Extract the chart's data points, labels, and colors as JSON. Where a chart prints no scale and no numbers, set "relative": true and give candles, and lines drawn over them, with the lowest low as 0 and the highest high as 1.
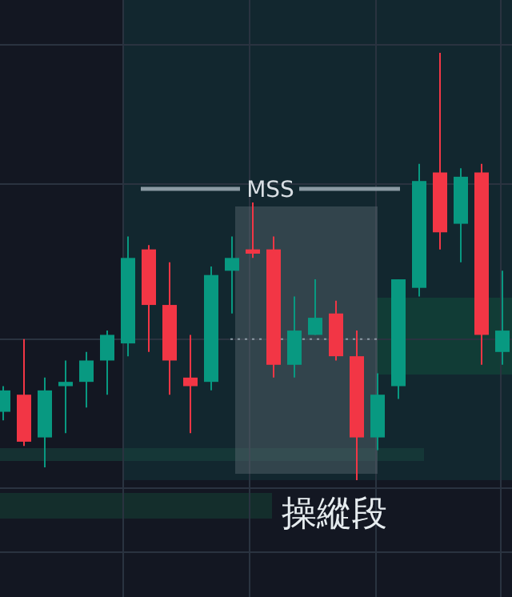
{
  "chart_data": {
    "type": "candlestick",
    "relative": true,
    "categories": [
      null,
      null,
      null,
      null,
      null,
      null,
      null,
      null,
      null,
      null,
      null,
      null,
      null,
      null,
      null,
      null,
      null,
      null,
      null,
      null,
      null,
      null,
      null,
      null,
      null
    ],
    "ohlc": [
      [
        0.16,
        0.22,
        0.14,
        0.21
      ],
      [
        0.2,
        0.33,
        0.08,
        0.09
      ],
      [
        0.1,
        0.24,
        0.03,
        0.21
      ],
      [
        0.22,
        0.28,
        0.11,
        0.23
      ],
      [
        0.23,
        0.3,
        0.17,
        0.28
      ],
      [
        0.28,
        0.35,
        0.2,
        0.34
      ],
      [
        0.32,
        0.57,
        0.29,
        0.52
      ],
      [
        0.54,
        0.55,
        0.3,
        0.41
      ],
      [
        0.41,
        0.51,
        0.2,
        0.28
      ],
      [
        0.24,
        0.34,
        0.11,
        0.22
      ],
      [
        0.23,
        0.5,
        0.21,
        0.48
      ],
      [
        0.49,
        0.57,
        0.39,
        0.52
      ],
      [
        0.54,
        0.65,
        0.52,
        0.53
      ],
      [
        0.54,
        0.57,
        0.24,
        0.27
      ],
      [
        0.27,
        0.43,
        0.24,
        0.35
      ],
      [
        0.34,
        0.47,
        0.34,
        0.38
      ],
      [
        0.39,
        0.42,
        0.28,
        0.29
      ],
      [
        0.29,
        0.35,
        0,
        0.1
      ],
      [
        0.1,
        0.25,
        0.07,
        0.2
      ],
      [
        0.22,
        0.47,
        0.19,
        0.47
      ],
      [
        0.45,
        0.74,
        0.43,
        0.7
      ],
      [
        0.72,
        1,
        0.54,
        0.58
      ],
      [
        0.6,
        0.73,
        0.51,
        0.71
      ],
      [
        0.72,
        0.74,
        0.27,
        0.34
      ],
      [
        0.3,
        0.49,
        0.27,
        0.35
      ]
    ],
    "colors": [
      "#089981",
      "#f23645",
      "#089981",
      "#089981",
      "#089981",
      "#089981",
      "#089981",
      "#f23645",
      "#f23645",
      "#f23645",
      "#089981",
      "#089981",
      "#f23645",
      "#f23645",
      "#089981",
      "#089981",
      "#f23645",
      "#f23645",
      "#089981",
      "#089981",
      "#089981",
      "#f23645",
      "#089981",
      "#f23645",
      "#089981"
    ],
    "ref_lines": [
      {
        "axis": "y",
        "value": 0.33,
        "color": "#8a9aa3",
        "line_style": "dotted"
      }
    ],
    "annotations": [
      "MSS",
      "操縱段"
    ]
  }
}
